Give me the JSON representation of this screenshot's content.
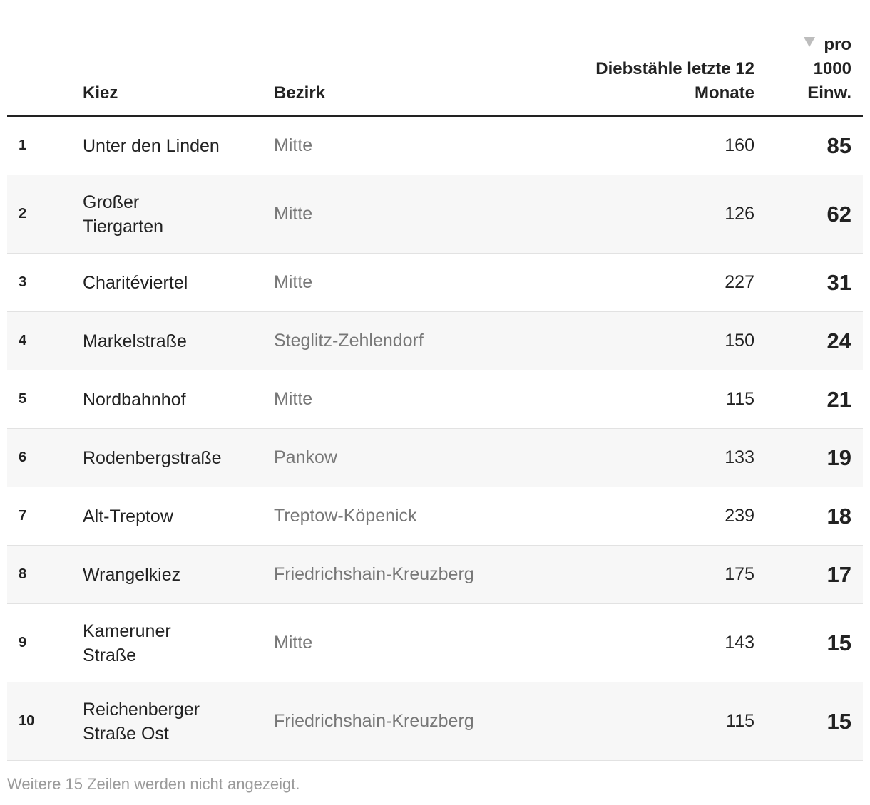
{
  "table": {
    "headers": {
      "kiez": "Kiez",
      "bezirk": "Bezirk",
      "diebstaehle_line1": "Diebstähle letzte 12",
      "diebstaehle_line2": "Monate",
      "pro_line1": "pro",
      "pro_line2": "1000",
      "pro_line3": "Einw."
    },
    "sort_icon": "sort-descending-triangle",
    "rows": [
      {
        "rank": "1",
        "kiez_line1": "Unter den Linden",
        "kiez_line2": "",
        "bezirk": "Mitte",
        "diebstaehle": "160",
        "pro_1000": "85"
      },
      {
        "rank": "2",
        "kiez_line1": "Großer",
        "kiez_line2": "Tiergarten",
        "bezirk": "Mitte",
        "diebstaehle": "126",
        "pro_1000": "62"
      },
      {
        "rank": "3",
        "kiez_line1": "Charitéviertel",
        "kiez_line2": "",
        "bezirk": "Mitte",
        "diebstaehle": "227",
        "pro_1000": "31"
      },
      {
        "rank": "4",
        "kiez_line1": "Markelstraße",
        "kiez_line2": "",
        "bezirk": "Steglitz-Zehlendorf",
        "diebstaehle": "150",
        "pro_1000": "24"
      },
      {
        "rank": "5",
        "kiez_line1": "Nordbahnhof",
        "kiez_line2": "",
        "bezirk": "Mitte",
        "diebstaehle": "115",
        "pro_1000": "21"
      },
      {
        "rank": "6",
        "kiez_line1": "Rodenbergstraße",
        "kiez_line2": "",
        "bezirk": "Pankow",
        "diebstaehle": "133",
        "pro_1000": "19"
      },
      {
        "rank": "7",
        "kiez_line1": "Alt-Treptow",
        "kiez_line2": "",
        "bezirk": "Treptow-Köpenick",
        "diebstaehle": "239",
        "pro_1000": "18"
      },
      {
        "rank": "8",
        "kiez_line1": "Wrangelkiez",
        "kiez_line2": "",
        "bezirk": "Friedrichshain-Kreuzberg",
        "diebstaehle": "175",
        "pro_1000": "17"
      },
      {
        "rank": "9",
        "kiez_line1": "Kameruner",
        "kiez_line2": "Straße",
        "bezirk": "Mitte",
        "diebstaehle": "143",
        "pro_1000": "15"
      },
      {
        "rank": "10",
        "kiez_line1": "Reichenberger",
        "kiez_line2": "Straße Ost",
        "bezirk": "Friedrichshain-Kreuzberg",
        "diebstaehle": "115",
        "pro_1000": "15"
      }
    ]
  },
  "colors": {
    "text": "#222222",
    "muted": "#777777",
    "footnote": "#9a9a9a",
    "row_alt": "#f7f7f7",
    "sort_icon": "#bdbdbd"
  },
  "footnote": "Weitere 15 Zeilen werden nicht angezeigt."
}
